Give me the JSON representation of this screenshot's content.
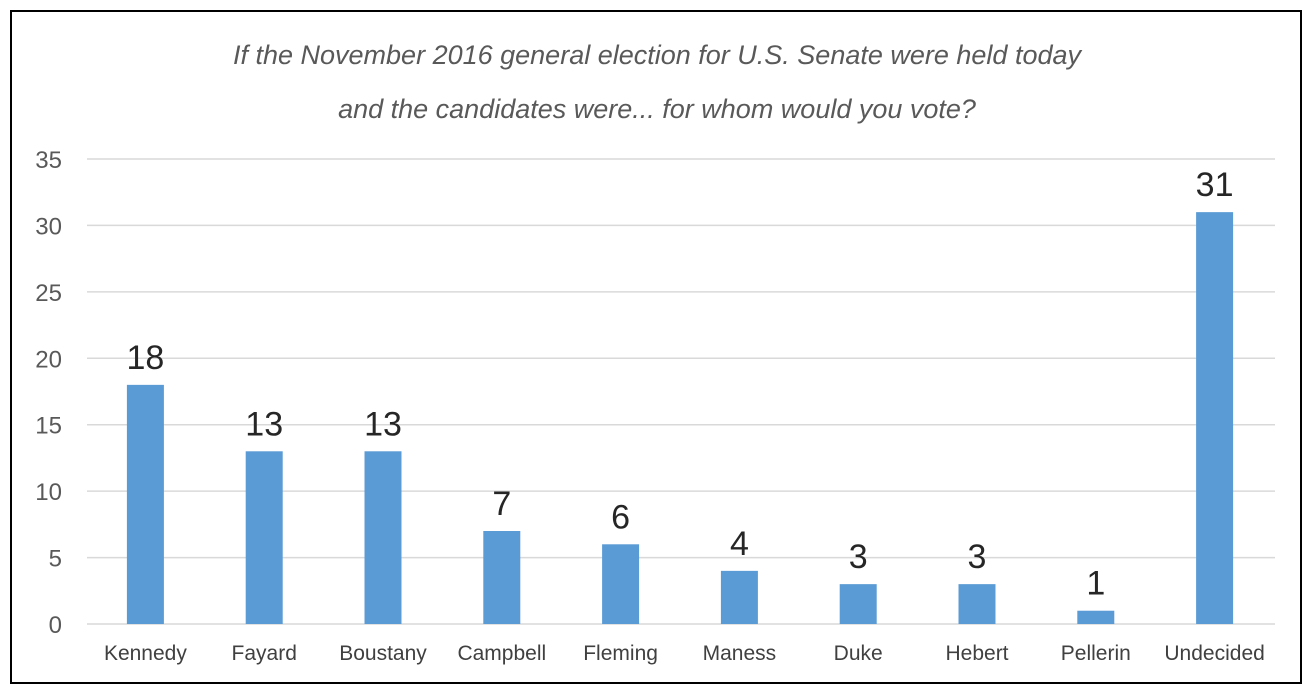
{
  "chart_data": {
    "type": "bar",
    "title": "If the November 2016 general election for U.S. Senate were held today and the candidates were... for whom would you vote?",
    "title_lines": [
      "If the November 2016 general election for U.S. Senate were held today",
      "and the candidates were... for whom would you vote?"
    ],
    "categories": [
      "Kennedy",
      "Fayard",
      "Boustany",
      "Campbell",
      "Fleming",
      "Maness",
      "Duke",
      "Hebert",
      "Pellerin",
      "Undecided"
    ],
    "values": [
      18,
      13,
      13,
      7,
      6,
      4,
      3,
      3,
      1,
      31
    ],
    "data_labels": [
      "18",
      "13",
      "13",
      "7",
      "6",
      "4",
      "3",
      "3",
      "1",
      "31"
    ],
    "xlabel": "",
    "ylabel": "",
    "ylim": [
      0,
      35
    ],
    "yticks": [
      0,
      5,
      10,
      15,
      20,
      25,
      30,
      35
    ],
    "ytick_labels": [
      "0",
      "5",
      "10",
      "15",
      "20",
      "25",
      "30",
      "35"
    ],
    "grid": true,
    "legend": "none",
    "bar_color": "#5b9bd5",
    "grid_color": "#d9d9d9"
  }
}
